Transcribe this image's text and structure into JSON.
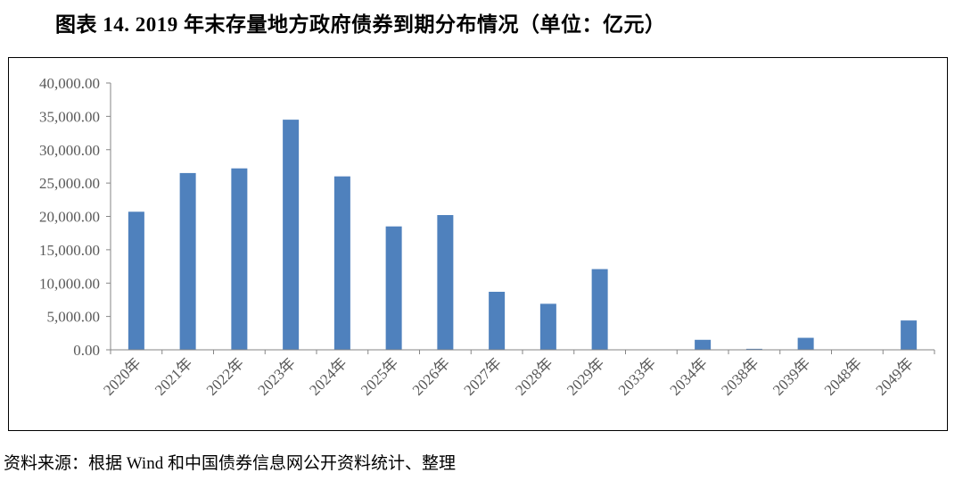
{
  "title": "图表 14. 2019 年末存量地方政府债券到期分布情况（单位：亿元）",
  "source": "资料来源：根据 Wind 和中国债券信息网公开资料统计、整理",
  "colors": {
    "bar": "#4f81bd",
    "axis": "#868686",
    "tick_text": "#595959"
  },
  "chart_data": {
    "type": "bar",
    "categories": [
      "2020年",
      "2021年",
      "2022年",
      "2023年",
      "2024年",
      "2025年",
      "2026年",
      "2027年",
      "2028年",
      "2029年",
      "2033年",
      "2034年",
      "2038年",
      "2039年",
      "2048年",
      "2049年"
    ],
    "values": [
      20700,
      26500,
      27200,
      34500,
      26000,
      18500,
      20200,
      8700,
      6900,
      12100,
      0,
      1500,
      150,
      1800,
      0,
      4400
    ],
    "ylim": [
      0,
      40000
    ],
    "yticks": [
      0,
      5000,
      10000,
      15000,
      20000,
      25000,
      30000,
      35000,
      40000
    ],
    "ytick_labels": [
      "0.00",
      "5,000.00",
      "10,000.00",
      "15,000.00",
      "20,000.00",
      "25,000.00",
      "30,000.00",
      "35,000.00",
      "40,000.00"
    ],
    "grid": false,
    "legend": false,
    "xlabel": "",
    "ylabel": ""
  }
}
